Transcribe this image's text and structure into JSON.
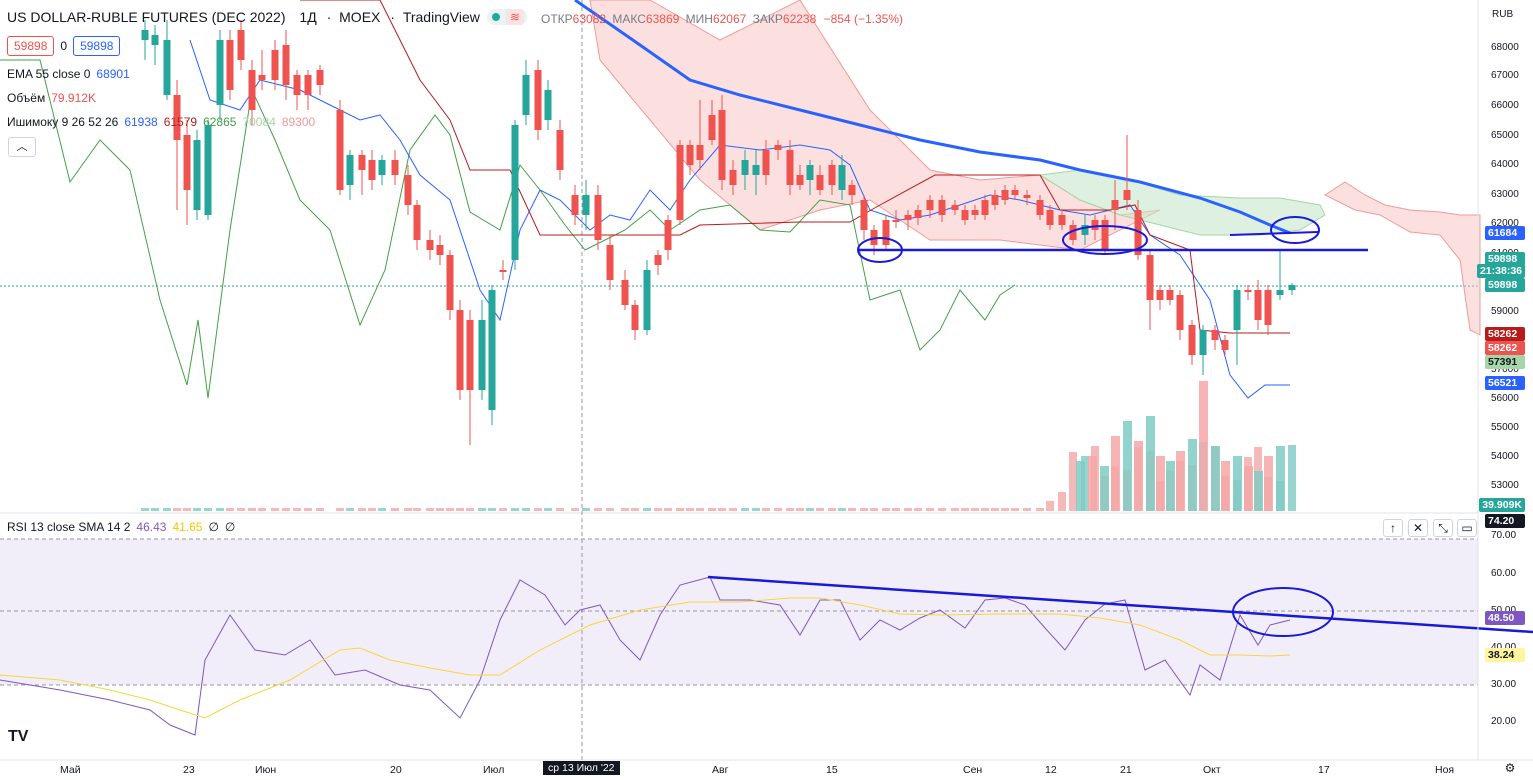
{
  "header": {
    "symbol": "US DOLLAR-RUBLE FUTURES (DEC 2022)",
    "interval": "1Д",
    "exchange": "MOEX",
    "provider": "TradingView",
    "open_label": "ОТКР",
    "open": "63082",
    "high_label": "МАКС",
    "high": "63869",
    "low_label": "МИН",
    "low": "62067",
    "close_label": "ЗАКР",
    "close": "62238",
    "change": "−854 (−1.35%)"
  },
  "order": {
    "sell": "59898",
    "qty": "0",
    "buy": "59898"
  },
  "indicators": {
    "ema_label": "EMA 55 close 0",
    "ema_value": "68901",
    "volume_label": "Объём",
    "volume_value": "79.912K",
    "ichimoku_label": "Ишимоку 9 26 52 26",
    "ichimoku_values": [
      "61938",
      "61579",
      "62865",
      "70084",
      "89300"
    ],
    "collapse_icon": "chevron-up-icon"
  },
  "currency": "RUB",
  "price_axis": [
    "68000",
    "67000",
    "66000",
    "65000",
    "64000",
    "63000",
    "62000",
    "61000",
    "60000",
    "59000",
    "58000",
    "57000",
    "56000",
    "55000",
    "54000",
    "53000"
  ],
  "price_tags": [
    {
      "value": "61684",
      "color": "#2962ff"
    },
    {
      "value": "59898",
      "color": "#26a69a"
    },
    {
      "value": "21:38:36",
      "color": "#26a69a"
    },
    {
      "value": "59898",
      "color": "#26a69a"
    },
    {
      "value": "58262",
      "color": "#b71c1c"
    },
    {
      "value": "58262",
      "color": "#ef5350"
    },
    {
      "value": "57391",
      "color": "#a5d6a7"
    },
    {
      "value": "56521",
      "color": "#2962ff"
    },
    {
      "value": "39.909K",
      "color": "#26a69a"
    }
  ],
  "rsi": {
    "label": "RSI 13 close SMA 14 2",
    "value1": "46.43",
    "value2": "41.65",
    "value3": "∅",
    "value4": "∅",
    "axis": [
      "70.00",
      "60.00",
      "50.00",
      "40.00",
      "30.00",
      "20.00"
    ],
    "tag_top": "74.20",
    "tag_rsi": "48.50",
    "tag_sma": "38.24"
  },
  "pane_buttons": [
    "arrow-up-icon",
    "close-icon",
    "expand-icon",
    "maximize-icon"
  ],
  "dates": [
    "Май",
    "23",
    "Июн",
    "20",
    "Июл",
    "ср 13 Июл '22",
    "Авг",
    "15",
    "Сен",
    "12",
    "21",
    "Окт",
    "17",
    "Ноя"
  ],
  "logo": "TV"
}
